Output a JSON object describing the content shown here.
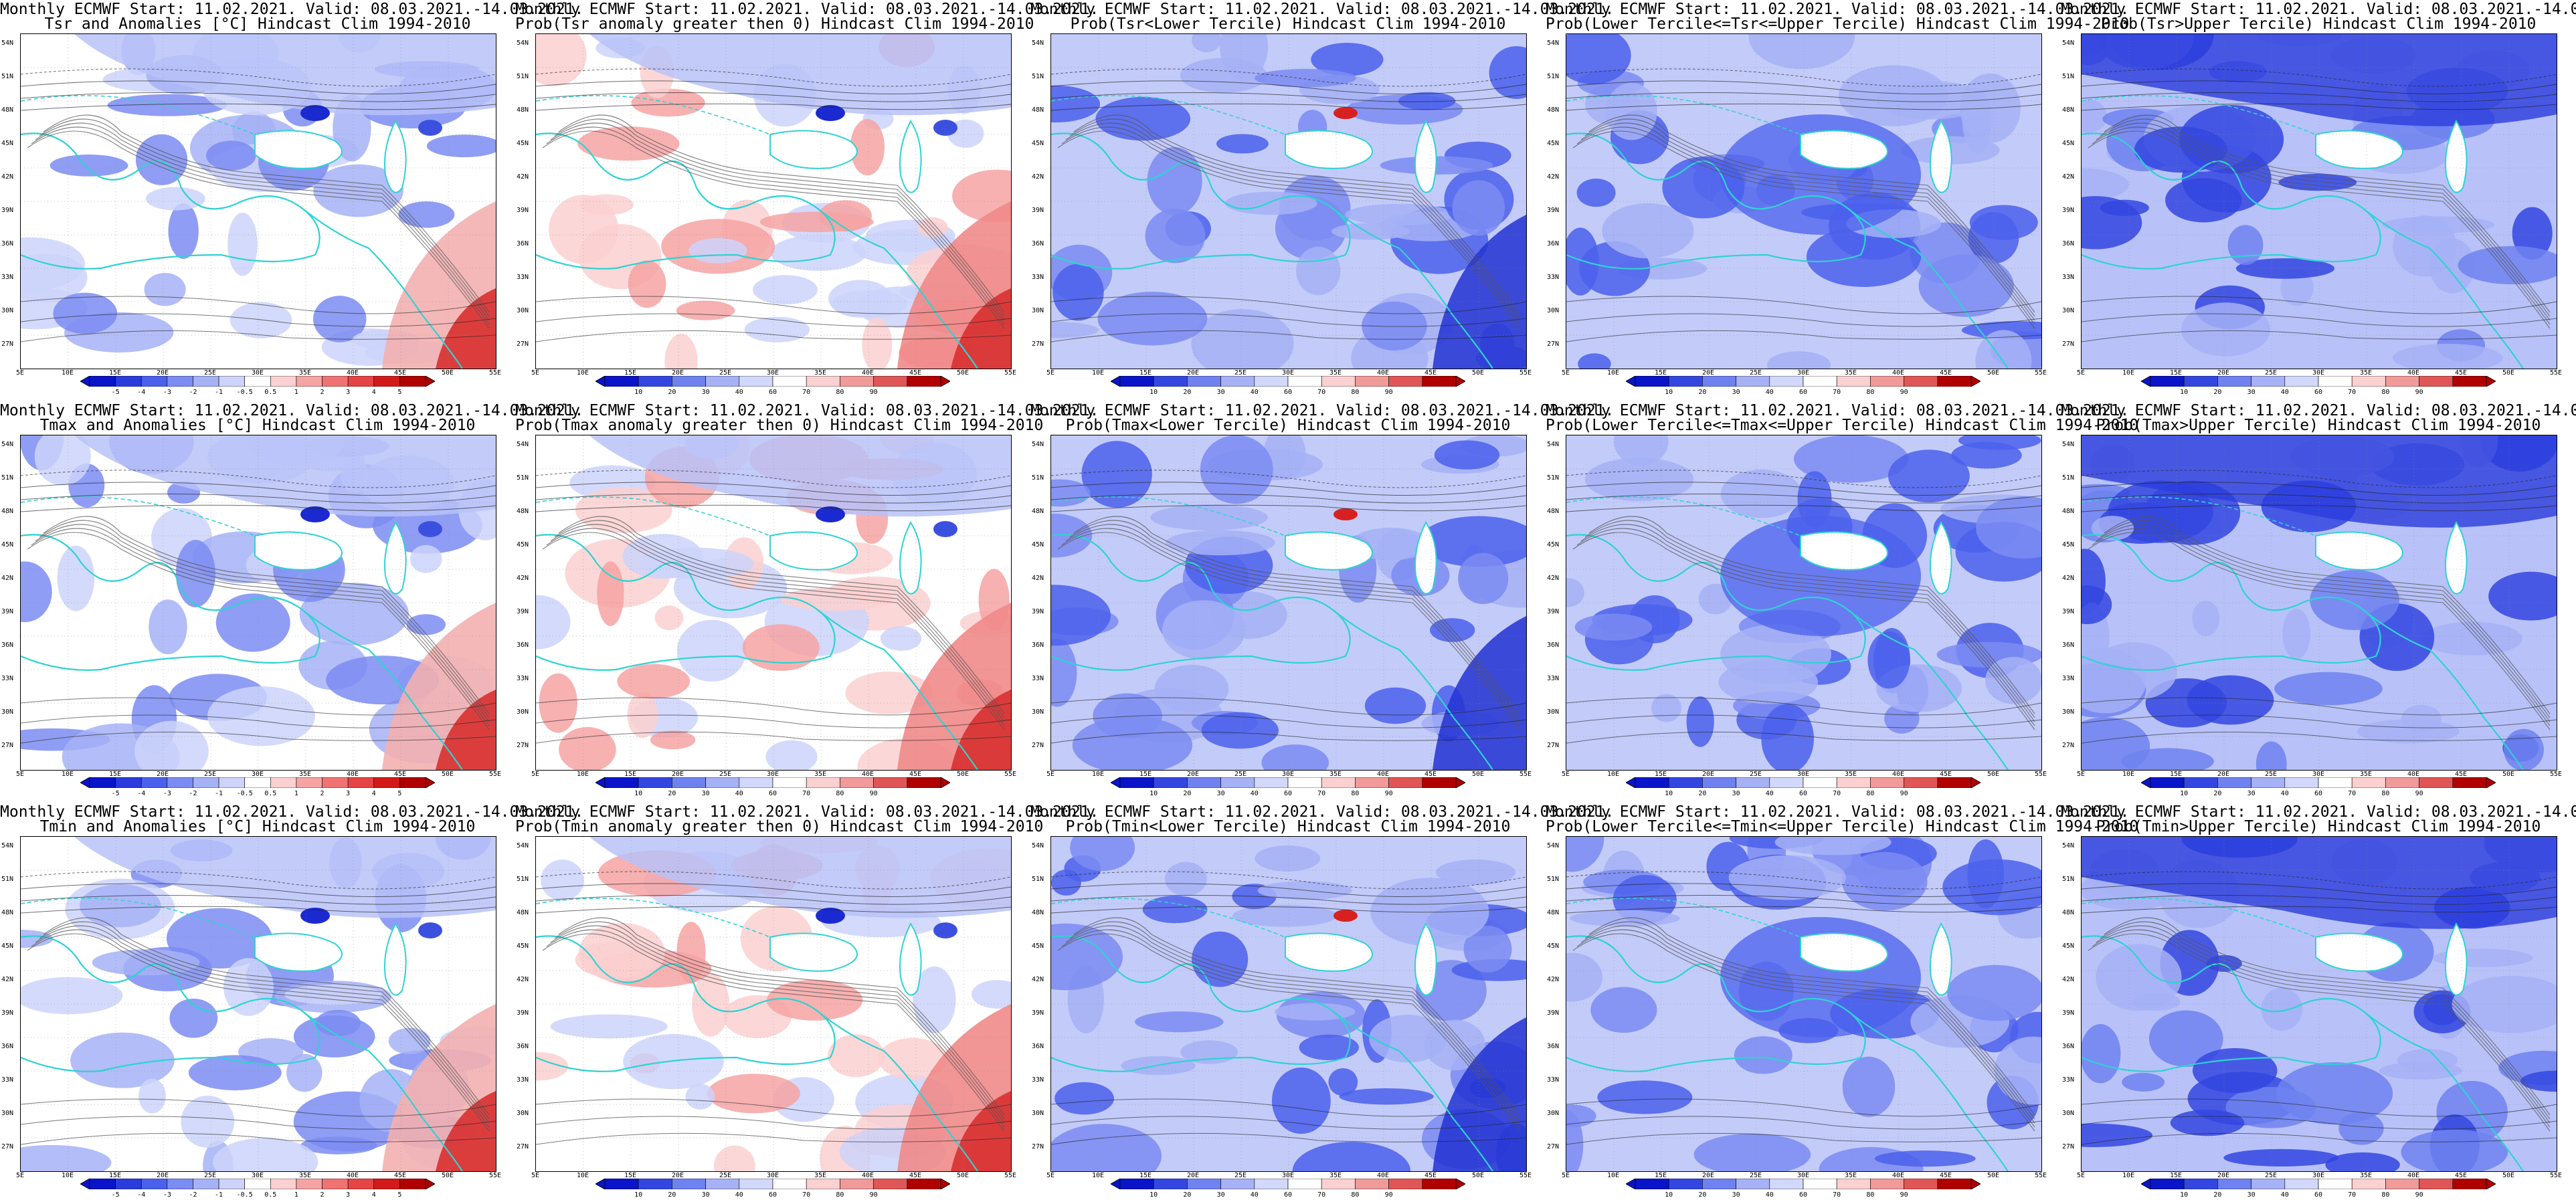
{
  "title_line1": "Monthly ECMWF Start: 11.02.2021. Valid: 08.03.2021.-14.03.2021.",
  "lat_labels": [
    "54N",
    "51N",
    "48N",
    "45N",
    "42N",
    "39N",
    "36N",
    "33N",
    "30N",
    "27N"
  ],
  "lon_labels": [
    "5E",
    "10E",
    "15E",
    "20E",
    "25E",
    "30E",
    "35E",
    "40E",
    "45E",
    "50E",
    "55E"
  ],
  "colorbars": {
    "anomaly": {
      "labels": [
        "-5",
        "-4",
        "-3",
        "-2",
        "-1",
        "-0.5",
        "0.5",
        "1",
        "2",
        "3",
        "4",
        "5"
      ],
      "colors": [
        "#0a14c8",
        "#2a3cdc",
        "#4b60ec",
        "#7b8cf2",
        "#a6b1f6",
        "#cdd3fa",
        "#ffffff",
        "#fbd0d0",
        "#f6a3a3",
        "#ef7373",
        "#e54545",
        "#d21a1a",
        "#b00000"
      ]
    },
    "probability": {
      "labels": [
        "10",
        "20",
        "30",
        "40",
        "60",
        "70",
        "80",
        "90"
      ],
      "colors": [
        "#0a14c8",
        "#3347e0",
        "#6f82f0",
        "#a6b1f6",
        "#d2d8fb",
        "#ffffff",
        "#fbd0d0",
        "#f09a9a",
        "#e05656",
        "#b00000"
      ]
    }
  },
  "panels": [
    {
      "title2": "Tsr and Anomalies [°C] Hindcast Clim 1994-2010",
      "scale": "anomaly",
      "fill": "anom"
    },
    {
      "title2": "Prob(Tsr anomaly greater then 0) Hindcast Clim 1994-2010",
      "scale": "probability",
      "fill": "pos"
    },
    {
      "title2": "Prob(Tsr<Lower Tercile) Hindcast Clim 1994-2010",
      "scale": "probability",
      "fill": "low"
    },
    {
      "title2": "Prob(Lower Tercile<=Tsr<=Upper Tercile) Hindcast Clim 1994-2010",
      "scale": "probability",
      "fill": "mid"
    },
    {
      "title2": "Prob(Tsr>Upper Tercile) Hindcast Clim 1994-2010",
      "scale": "probability",
      "fill": "up"
    },
    {
      "title2": "Tmax and Anomalies [°C] Hindcast Clim 1994-2010",
      "scale": "anomaly",
      "fill": "anom"
    },
    {
      "title2": "Prob(Tmax anomaly greater then 0) Hindcast Clim 1994-2010",
      "scale": "probability",
      "fill": "pos"
    },
    {
      "title2": "Prob(Tmax<Lower Tercile) Hindcast Clim 1994-2010",
      "scale": "probability",
      "fill": "low"
    },
    {
      "title2": "Prob(Lower Tercile<=Tmax<=Upper Tercile) Hindcast Clim 1994-2010",
      "scale": "probability",
      "fill": "mid"
    },
    {
      "title2": "Prob(Tmax>Upper Tercile) Hindcast Clim 1994-2010",
      "scale": "probability",
      "fill": "up"
    },
    {
      "title2": "Tmin and Anomalies [°C] Hindcast Clim 1994-2010",
      "scale": "anomaly",
      "fill": "anom"
    },
    {
      "title2": "Prob(Tmin anomaly greater then 0) Hindcast Clim 1994-2010",
      "scale": "probability",
      "fill": "pos"
    },
    {
      "title2": "Prob(Tmin<Lower Tercile) Hindcast Clim 1994-2010",
      "scale": "probability",
      "fill": "low"
    },
    {
      "title2": "Prob(Lower Tercile<=Tmin<=Upper Tercile) Hindcast Clim 1994-2010",
      "scale": "probability",
      "fill": "mid"
    },
    {
      "title2": "Prob(Tmin>Upper Tercile) Hindcast Clim 1994-2010",
      "scale": "probability",
      "fill": "up"
    }
  ]
}
